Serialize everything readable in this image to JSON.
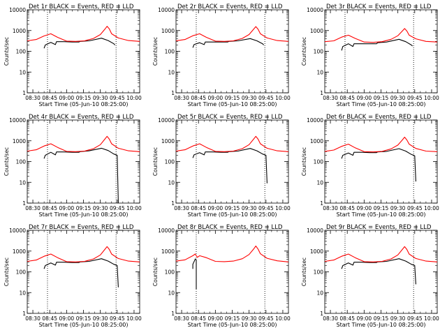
{
  "figure": {
    "xlabel": "Start Time (05-Jun-10 08:25:00)",
    "ylabel": "Counts/sec",
    "x_ticks": [
      "08:30",
      "08:45",
      "09:00",
      "09:15",
      "09:30",
      "09:45",
      "10:00"
    ],
    "y_ticks": [
      "1",
      "10",
      "100",
      "1000",
      "10000"
    ]
  },
  "colors": {
    "events": "#000000",
    "lld": "#ff0000",
    "axes": "#000000",
    "background": "#ffffff"
  },
  "chart_data": [
    {
      "type": "line",
      "title": "Det 1r BLACK = Events, RED = LLD",
      "xlabel": "Start Time (05-Jun-10 08:25:00)",
      "ylabel": "Counts/sec",
      "xlim": [
        "08:25",
        "10:05"
      ],
      "ylim": [
        1,
        10000
      ],
      "y_scale": "log",
      "markers": [
        "08:43",
        "09:44"
      ],
      "series": [
        {
          "name": "Events",
          "color": "#000000",
          "x": [
            "08:40",
            "08:41",
            "08:46",
            "08:50",
            "08:51",
            "08:58",
            "09:05",
            "09:11",
            "09:12",
            "09:20",
            "09:31",
            "09:37",
            "09:42",
            "09:43"
          ],
          "y": [
            140,
            200,
            270,
            210,
            290,
            290,
            280,
            280,
            300,
            320,
            430,
            330,
            230,
            200
          ]
        },
        {
          "name": "LLD",
          "color": "#ff0000",
          "x": [
            "08:25",
            "08:33",
            "08:40",
            "08:46",
            "08:52",
            "09:00",
            "09:08",
            "09:16",
            "09:24",
            "09:30",
            "09:34",
            "09:36",
            "09:38",
            "09:40",
            "09:46",
            "09:55",
            "10:05"
          ],
          "y": [
            320,
            370,
            550,
            700,
            470,
            310,
            300,
            320,
            420,
            640,
            1150,
            1600,
            1200,
            700,
            440,
            330,
            300
          ]
        }
      ]
    },
    {
      "type": "line",
      "title": "Det 2r BLACK = Events, RED = LLD",
      "xlabel": "Start Time (05-Jun-10 08:25:00)",
      "ylabel": "Counts/sec",
      "xlim": [
        "08:25",
        "10:05"
      ],
      "ylim": [
        1,
        10000
      ],
      "y_scale": "log",
      "markers": [
        "08:43",
        "09:44"
      ],
      "series": [
        {
          "name": "Events",
          "color": "#000000",
          "x": [
            "08:40",
            "08:41",
            "08:46",
            "08:50",
            "08:51",
            "08:58",
            "09:05",
            "09:11",
            "09:12",
            "09:20",
            "09:31",
            "09:37",
            "09:42",
            "09:43"
          ],
          "y": [
            150,
            210,
            260,
            210,
            280,
            280,
            280,
            280,
            300,
            320,
            410,
            320,
            230,
            200
          ]
        },
        {
          "name": "LLD",
          "color": "#ff0000",
          "x": [
            "08:25",
            "08:33",
            "08:40",
            "08:46",
            "08:52",
            "09:00",
            "09:08",
            "09:16",
            "09:24",
            "09:30",
            "09:34",
            "09:36",
            "09:38",
            "09:40",
            "09:46",
            "09:55",
            "10:05"
          ],
          "y": [
            320,
            370,
            560,
            700,
            470,
            310,
            300,
            320,
            420,
            640,
            1150,
            1550,
            1150,
            700,
            440,
            330,
            300
          ]
        }
      ]
    },
    {
      "type": "line",
      "title": "Det 3r BLACK = Events, RED = LLD",
      "xlabel": "Start Time (05-Jun-10 08:25:00)",
      "ylabel": "Counts/sec",
      "xlim": [
        "08:25",
        "10:05"
      ],
      "ylim": [
        1,
        10000
      ],
      "y_scale": "log",
      "markers": [
        "08:43",
        "09:44"
      ],
      "series": [
        {
          "name": "Events",
          "color": "#000000",
          "x": [
            "08:40",
            "08:41",
            "08:46",
            "08:50",
            "08:51",
            "08:58",
            "09:05",
            "09:11",
            "09:12",
            "09:20",
            "09:31",
            "09:37",
            "09:42",
            "09:43"
          ],
          "y": [
            110,
            170,
            230,
            170,
            230,
            230,
            230,
            230,
            260,
            280,
            380,
            290,
            200,
            180
          ]
        },
        {
          "name": "LLD",
          "color": "#ff0000",
          "x": [
            "08:25",
            "08:33",
            "08:40",
            "08:46",
            "08:52",
            "09:00",
            "09:08",
            "09:16",
            "09:24",
            "09:30",
            "09:34",
            "09:36",
            "09:38",
            "09:40",
            "09:46",
            "09:55",
            "10:05"
          ],
          "y": [
            290,
            320,
            480,
            600,
            420,
            280,
            270,
            290,
            380,
            560,
            950,
            1250,
            950,
            600,
            400,
            300,
            280
          ]
        }
      ]
    },
    {
      "type": "line",
      "title": "Det 4r BLACK = Events, RED = LLD",
      "xlabel": "Start Time (05-Jun-10 08:25:00)",
      "ylabel": "Counts/sec",
      "xlim": [
        "08:25",
        "10:05"
      ],
      "ylim": [
        1,
        10000
      ],
      "y_scale": "log",
      "markers": [
        "08:43",
        "09:44"
      ],
      "series": [
        {
          "name": "Events",
          "color": "#000000",
          "x": [
            "08:40",
            "08:41",
            "08:46",
            "08:50",
            "08:51",
            "08:58",
            "09:05",
            "09:11",
            "09:12",
            "09:20",
            "09:31",
            "09:37",
            "09:42",
            "09:45",
            "09:46"
          ],
          "y": [
            140,
            200,
            280,
            210,
            290,
            290,
            280,
            280,
            300,
            330,
            440,
            340,
            230,
            200,
            1
          ]
        },
        {
          "name": "LLD",
          "color": "#ff0000",
          "x": [
            "08:25",
            "08:33",
            "08:40",
            "08:46",
            "08:52",
            "09:00",
            "09:08",
            "09:16",
            "09:24",
            "09:30",
            "09:34",
            "09:36",
            "09:38",
            "09:40",
            "09:46",
            "09:55",
            "10:05"
          ],
          "y": [
            320,
            370,
            560,
            720,
            480,
            310,
            300,
            320,
            420,
            650,
            1200,
            1650,
            1200,
            720,
            440,
            330,
            300
          ]
        }
      ]
    },
    {
      "type": "line",
      "title": "Det 5r BLACK = Events, RED = LLD",
      "xlabel": "Start Time (05-Jun-10 08:25:00)",
      "ylabel": "Counts/sec",
      "xlim": [
        "08:25",
        "10:05"
      ],
      "ylim": [
        1,
        10000
      ],
      "y_scale": "log",
      "markers": [
        "08:43",
        "09:44"
      ],
      "series": [
        {
          "name": "Events",
          "color": "#000000",
          "x": [
            "08:40",
            "08:41",
            "08:46",
            "08:50",
            "08:51",
            "08:58",
            "09:05",
            "09:11",
            "09:12",
            "09:20",
            "09:31",
            "09:37",
            "09:42",
            "09:45",
            "09:46"
          ],
          "y": [
            150,
            210,
            270,
            210,
            290,
            290,
            280,
            280,
            300,
            320,
            430,
            330,
            230,
            200,
            9
          ]
        },
        {
          "name": "LLD",
          "color": "#ff0000",
          "x": [
            "08:25",
            "08:33",
            "08:40",
            "08:46",
            "08:52",
            "09:00",
            "09:08",
            "09:16",
            "09:24",
            "09:30",
            "09:34",
            "09:36",
            "09:38",
            "09:40",
            "09:46",
            "09:55",
            "10:05"
          ],
          "y": [
            320,
            370,
            560,
            720,
            480,
            310,
            300,
            320,
            420,
            650,
            1200,
            1650,
            1200,
            720,
            440,
            330,
            300
          ]
        }
      ]
    },
    {
      "type": "line",
      "title": "Det 6r BLACK = Events, RED = LLD",
      "xlabel": "Start Time (05-Jun-10 08:25:00)",
      "ylabel": "Counts/sec",
      "xlim": [
        "08:25",
        "10:05"
      ],
      "ylim": [
        1,
        10000
      ],
      "y_scale": "log",
      "markers": [
        "08:43",
        "09:44"
      ],
      "series": [
        {
          "name": "Events",
          "color": "#000000",
          "x": [
            "08:40",
            "08:41",
            "08:46",
            "08:50",
            "08:51",
            "08:58",
            "09:05",
            "09:11",
            "09:12",
            "09:20",
            "09:31",
            "09:37",
            "09:42",
            "09:45",
            "09:46"
          ],
          "y": [
            140,
            200,
            260,
            200,
            280,
            280,
            270,
            270,
            290,
            310,
            420,
            320,
            220,
            190,
            11
          ]
        },
        {
          "name": "LLD",
          "color": "#ff0000",
          "x": [
            "08:25",
            "08:33",
            "08:40",
            "08:46",
            "08:52",
            "09:00",
            "09:08",
            "09:16",
            "09:24",
            "09:30",
            "09:34",
            "09:36",
            "09:38",
            "09:40",
            "09:46",
            "09:55",
            "10:05"
          ],
          "y": [
            310,
            360,
            540,
            690,
            460,
            300,
            290,
            310,
            410,
            620,
            1100,
            1500,
            1100,
            690,
            430,
            320,
            300
          ]
        }
      ]
    },
    {
      "type": "line",
      "title": "Det 7r BLACK = Events, RED = LLD",
      "xlabel": "Start Time (05-Jun-10 08:25:00)",
      "ylabel": "Counts/sec",
      "xlim": [
        "08:25",
        "10:05"
      ],
      "ylim": [
        1,
        10000
      ],
      "y_scale": "log",
      "markers": [
        "08:43",
        "09:44"
      ],
      "series": [
        {
          "name": "Events",
          "color": "#000000",
          "x": [
            "08:40",
            "08:41",
            "08:46",
            "08:50",
            "08:51",
            "08:58",
            "09:05",
            "09:11",
            "09:12",
            "09:20",
            "09:31",
            "09:37",
            "09:42",
            "09:45",
            "09:46"
          ],
          "y": [
            140,
            200,
            270,
            210,
            290,
            290,
            280,
            280,
            300,
            320,
            430,
            330,
            230,
            200,
            18
          ]
        },
        {
          "name": "LLD",
          "color": "#ff0000",
          "x": [
            "08:25",
            "08:33",
            "08:40",
            "08:46",
            "08:52",
            "09:00",
            "09:08",
            "09:16",
            "09:24",
            "09:30",
            "09:34",
            "09:36",
            "09:38",
            "09:40",
            "09:46",
            "09:55",
            "10:05"
          ],
          "y": [
            320,
            370,
            560,
            720,
            480,
            310,
            300,
            320,
            420,
            650,
            1200,
            1650,
            1200,
            720,
            440,
            330,
            300
          ]
        }
      ]
    },
    {
      "type": "line",
      "title": "Det 8r BLACK = Events, RED = LLD",
      "xlabel": "Start Time (05-Jun-10 08:25:00)",
      "ylabel": "Counts/sec",
      "xlim": [
        "08:25",
        "10:05"
      ],
      "ylim": [
        1,
        10000
      ],
      "y_scale": "log",
      "markers": [
        "08:43",
        "09:44"
      ],
      "series": [
        {
          "name": "Events",
          "color": "#000000",
          "x": [
            "08:40",
            "08:40",
            "08:42",
            "08:42",
            "08:43",
            "08:43"
          ],
          "y": [
            140,
            230,
            400,
            420,
            380,
            15
          ]
        },
        {
          "name": "LLD",
          "color": "#ff0000",
          "x": [
            "08:25",
            "08:33",
            "08:40",
            "08:42",
            "08:44",
            "08:46",
            "08:52",
            "09:00",
            "09:08",
            "09:16",
            "09:24",
            "09:30",
            "09:34",
            "09:36",
            "09:38",
            "09:40",
            "09:46",
            "09:55",
            "10:05"
          ],
          "y": [
            330,
            380,
            600,
            720,
            500,
            600,
            480,
            320,
            310,
            330,
            430,
            680,
            1250,
            1750,
            1250,
            740,
            450,
            340,
            300
          ]
        }
      ]
    },
    {
      "type": "line",
      "title": "Det 9r BLACK = Events, RED = LLD",
      "xlabel": "Start Time (05-Jun-10 08:25:00)",
      "ylabel": "Counts/sec",
      "xlim": [
        "08:25",
        "10:05"
      ],
      "ylim": [
        1,
        10000
      ],
      "y_scale": "log",
      "markers": [
        "08:43",
        "09:44"
      ],
      "series": [
        {
          "name": "Events",
          "color": "#000000",
          "x": [
            "08:40",
            "08:41",
            "08:46",
            "08:50",
            "08:51",
            "08:58",
            "09:05",
            "09:11",
            "09:12",
            "09:20",
            "09:31",
            "09:37",
            "09:42",
            "09:45",
            "09:46"
          ],
          "y": [
            140,
            200,
            270,
            210,
            290,
            290,
            280,
            280,
            300,
            320,
            430,
            330,
            230,
            200,
            25
          ]
        },
        {
          "name": "LLD",
          "color": "#ff0000",
          "x": [
            "08:25",
            "08:33",
            "08:40",
            "08:46",
            "08:52",
            "09:00",
            "09:08",
            "09:16",
            "09:24",
            "09:30",
            "09:34",
            "09:36",
            "09:38",
            "09:40",
            "09:46",
            "09:55",
            "10:05"
          ],
          "y": [
            320,
            370,
            560,
            720,
            480,
            310,
            300,
            320,
            420,
            650,
            1200,
            1650,
            1200,
            720,
            440,
            330,
            300
          ]
        }
      ]
    }
  ]
}
